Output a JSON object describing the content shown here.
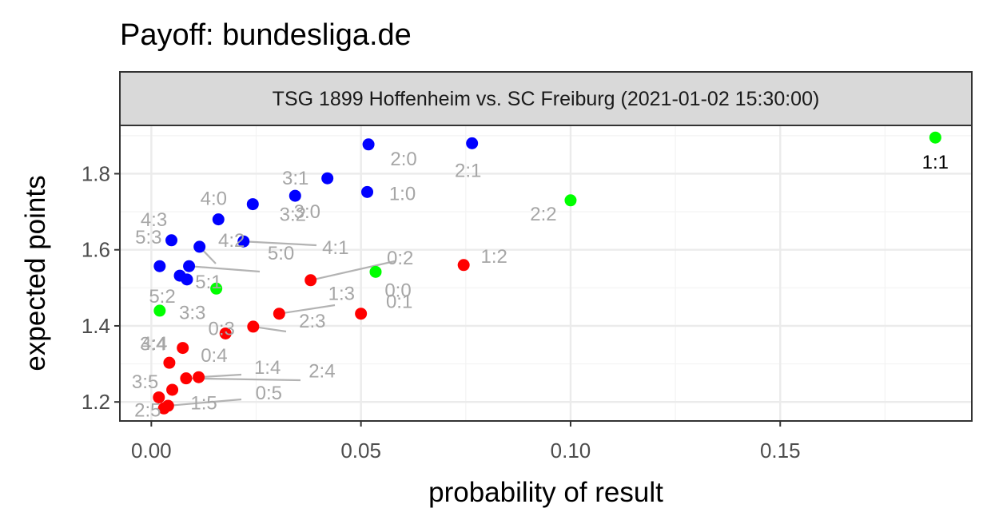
{
  "chart_data": {
    "type": "scatter",
    "title": "Payoff: bundesliga.de",
    "facet": "TSG 1899 Hoffenheim vs. SC Freiburg (2021-01-02 15:30:00)",
    "xlabel": "probability of result",
    "ylabel": "expected points",
    "xlim": [
      -0.0075,
      0.1957
    ],
    "ylim": [
      1.15,
      1.927
    ],
    "x_ticks": [
      0.0,
      0.05,
      0.1,
      0.15
    ],
    "x_tick_labels": [
      "0.00",
      "0.05",
      "0.10",
      "0.15"
    ],
    "y_ticks": [
      1.2,
      1.4,
      1.6,
      1.8
    ],
    "y_tick_labels": [
      "1.2",
      "1.4",
      "1.6",
      "1.8"
    ],
    "grid": true,
    "colors": {
      "home_win": "#0000ff",
      "draw": "#00ff00",
      "away_win": "#ff0000",
      "highlight_label": "#000000",
      "label": "#a6a6a6",
      "leader": "#b3b3b3",
      "panel_border": "#333333",
      "strip_fill": "#d9d9d9",
      "grid_major": "#ebebeb",
      "grid_minor": "#f3f3f3"
    },
    "points": [
      {
        "label": "1:1",
        "x": 0.187,
        "y": 1.895,
        "outcome": "draw",
        "highlight": true
      },
      {
        "label": "2:2",
        "x": 0.1,
        "y": 1.73,
        "outcome": "draw"
      },
      {
        "label": "0:0",
        "x": 0.0535,
        "y": 1.542,
        "outcome": "draw"
      },
      {
        "label": "3:3",
        "x": 0.0155,
        "y": 1.498,
        "outcome": "draw"
      },
      {
        "label": "4:4",
        "x": 0.002,
        "y": 1.44,
        "outcome": "draw"
      },
      {
        "label": "2:1",
        "x": 0.0765,
        "y": 1.88,
        "outcome": "home_win"
      },
      {
        "label": "2:0",
        "x": 0.0518,
        "y": 1.877,
        "outcome": "home_win"
      },
      {
        "label": "1:0",
        "x": 0.0515,
        "y": 1.752,
        "outcome": "home_win"
      },
      {
        "label": "3:1",
        "x": 0.042,
        "y": 1.788,
        "outcome": "home_win"
      },
      {
        "label": "3:0",
        "x": 0.0343,
        "y": 1.742,
        "outcome": "home_win"
      },
      {
        "label": "3:2",
        "x": 0.0242,
        "y": 1.72,
        "outcome": "home_win"
      },
      {
        "label": "4:1",
        "x": 0.022,
        "y": 1.622,
        "outcome": "home_win"
      },
      {
        "label": "4:0",
        "x": 0.016,
        "y": 1.68,
        "outcome": "home_win"
      },
      {
        "label": "4:3",
        "x": 0.0048,
        "y": 1.625,
        "outcome": "home_win"
      },
      {
        "label": "4:2",
        "x": 0.0115,
        "y": 1.608,
        "outcome": "home_win"
      },
      {
        "label": "5:3",
        "x": 0.002,
        "y": 1.557,
        "outcome": "home_win"
      },
      {
        "label": "5:0",
        "x": 0.009,
        "y": 1.557,
        "outcome": "home_win"
      },
      {
        "label": "5:2",
        "x": 0.0068,
        "y": 1.532,
        "outcome": "home_win"
      },
      {
        "label": "5:1",
        "x": 0.0085,
        "y": 1.522,
        "outcome": "home_win"
      },
      {
        "label": "1:2",
        "x": 0.0745,
        "y": 1.56,
        "outcome": "away_win"
      },
      {
        "label": "0:2",
        "x": 0.038,
        "y": 1.52,
        "outcome": "away_win"
      },
      {
        "label": "1:3",
        "x": 0.0305,
        "y": 1.432,
        "outcome": "away_win"
      },
      {
        "label": "0:1",
        "x": 0.05,
        "y": 1.432,
        "outcome": "away_win"
      },
      {
        "label": "2:3",
        "x": 0.0243,
        "y": 1.398,
        "outcome": "away_win"
      },
      {
        "label": "0:3",
        "x": 0.0177,
        "y": 1.38,
        "outcome": "away_win"
      },
      {
        "label": "3:4",
        "x": 0.0075,
        "y": 1.342,
        "outcome": "away_win"
      },
      {
        "label": "0:4",
        "x": 0.0043,
        "y": 1.303,
        "outcome": "away_win"
      },
      {
        "label": "1:4",
        "x": 0.0113,
        "y": 1.265,
        "outcome": "away_win"
      },
      {
        "label": "2:4",
        "x": 0.0083,
        "y": 1.262,
        "outcome": "away_win"
      },
      {
        "label": "3:5",
        "x": 0.005,
        "y": 1.232,
        "outcome": "away_win"
      },
      {
        "label": "2:5",
        "x": 0.0018,
        "y": 1.212,
        "outcome": "away_win"
      },
      {
        "label": "0:5",
        "x": 0.004,
        "y": 1.19,
        "outcome": "away_win"
      },
      {
        "label": "1:5",
        "x": 0.003,
        "y": 1.183,
        "outcome": "away_win"
      }
    ]
  }
}
